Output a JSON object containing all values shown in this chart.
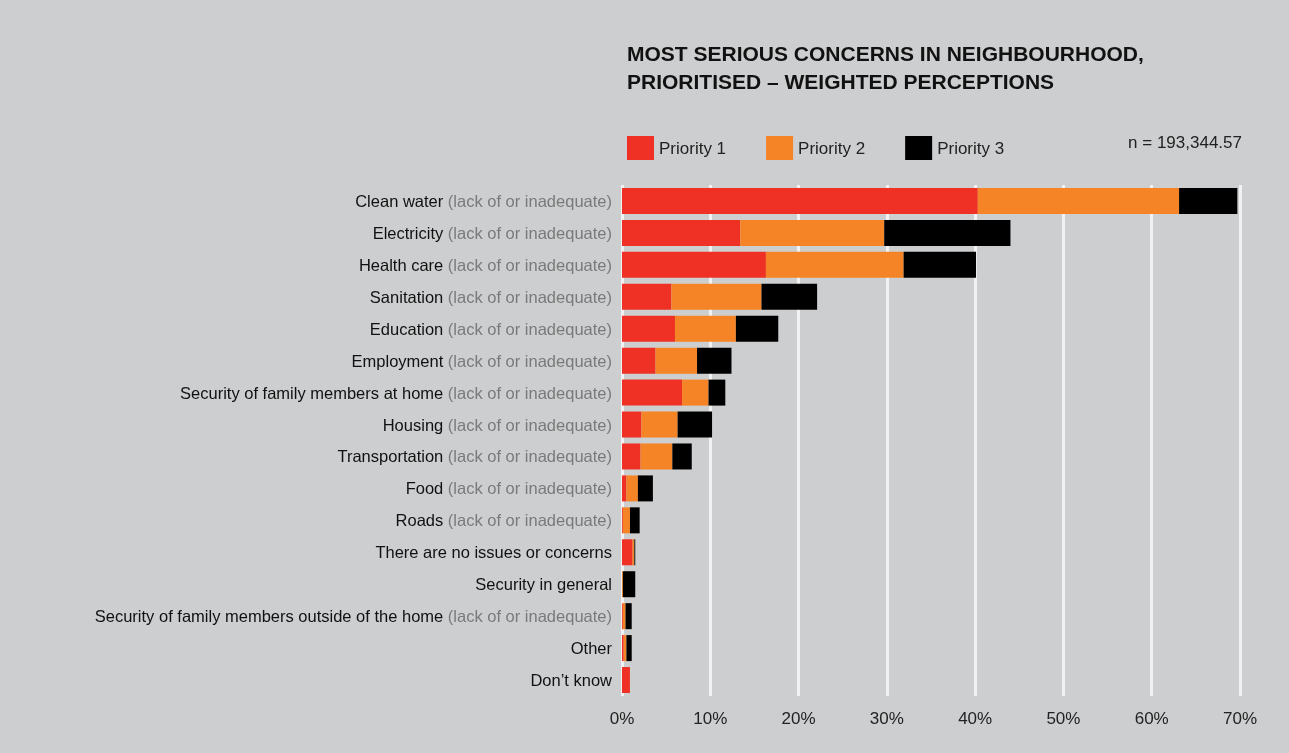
{
  "chart_data": {
    "type": "bar",
    "orientation": "horizontal",
    "stacked": true,
    "title": "MOST SERIOUS CONCERNS IN NEIGHBOURHOOD, PRIORITISED – WEIGHTED PERCEPTIONS",
    "categories": [
      "Clean water (lack of or inadequate)",
      "Electricity (lack of or inadequate)",
      "Health care (lack of or inadequate)",
      "Sanitation (lack of or inadequate)",
      "Education (lack of or inadequate)",
      "Employment (lack of or inadequate)",
      "Security of family members at home (lack of or inadequate)",
      "Housing (lack of or inadequate)",
      "Transportation (lack of or inadequate)",
      "Food (lack of or inadequate)",
      "Roads (lack of or inadequate)",
      "There are no issues or concerns",
      "Security in general",
      "Security of family members outside of the home (lack of or inadequate)",
      "Other",
      "Don’t know"
    ],
    "series": [
      {
        "name": "Priority 1",
        "color": "#ee3124",
        "values": [
          40.3,
          13.4,
          16.3,
          5.6,
          6.0,
          3.8,
          6.8,
          2.2,
          2.1,
          0.5,
          0.1,
          1.2,
          0,
          0.1,
          0.2,
          0.9
        ]
      },
      {
        "name": "Priority 2",
        "color": "#f58426",
        "values": [
          22.8,
          16.3,
          15.6,
          10.2,
          6.9,
          4.7,
          3.0,
          4.1,
          3.6,
          1.3,
          0.8,
          0.2,
          0.1,
          0.3,
          0.3,
          0
        ]
      },
      {
        "name": "Priority 3",
        "color": "#000000",
        "values": [
          6.6,
          14.3,
          8.2,
          6.3,
          4.8,
          3.9,
          1.9,
          3.9,
          2.2,
          1.7,
          1.1,
          0.1,
          1.4,
          0.7,
          0.6,
          0
        ]
      }
    ],
    "xlim": [
      0,
      70
    ],
    "xticks": [
      {
        "value": 0,
        "label": "0%"
      },
      {
        "value": 10,
        "label": "10%"
      },
      {
        "value": 20,
        "label": "20%"
      },
      {
        "value": 30,
        "label": "30%"
      },
      {
        "value": 40,
        "label": "40%"
      },
      {
        "value": 50,
        "label": "50%"
      },
      {
        "value": 60,
        "label": "60%"
      },
      {
        "value": 70,
        "label": "70%"
      }
    ],
    "grid": "x",
    "legend": "top",
    "annotations": [
      "n = 193,344.57"
    ]
  }
}
